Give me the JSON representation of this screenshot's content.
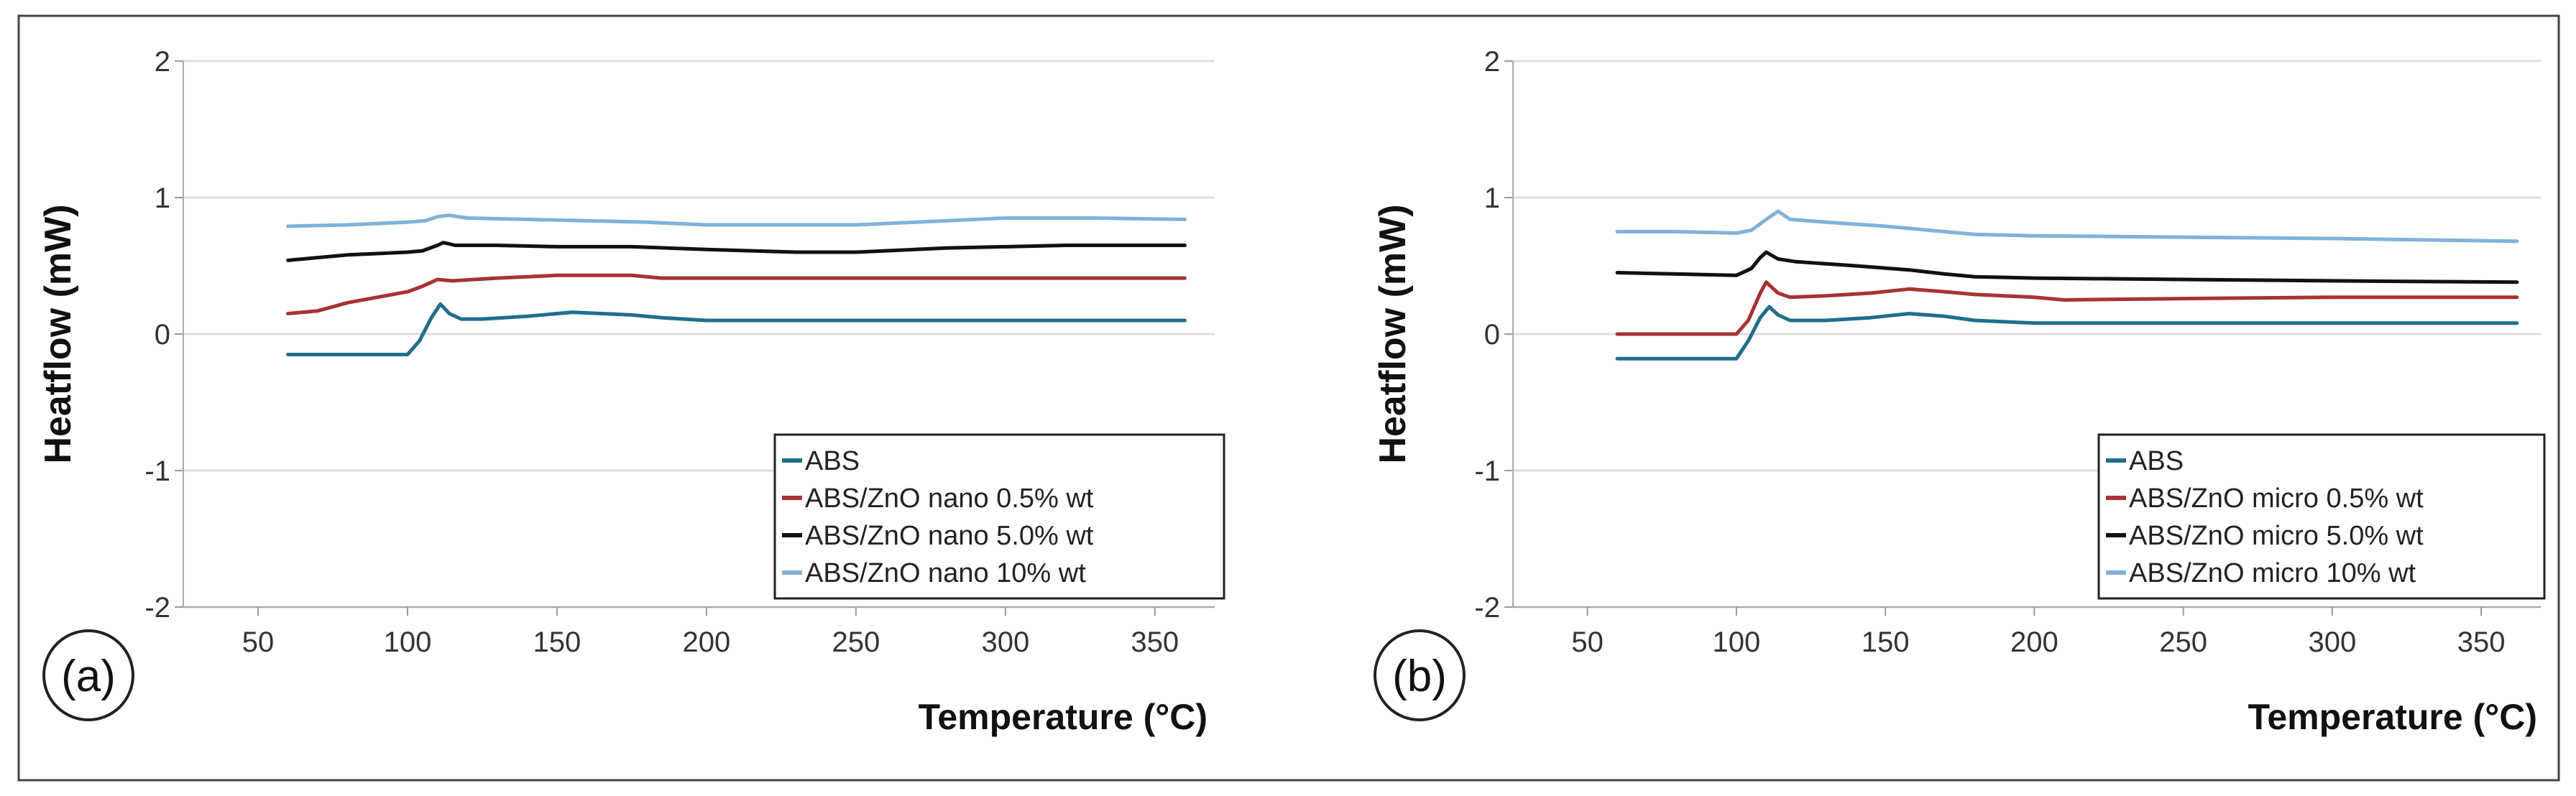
{
  "chart_data": [
    {
      "type": "line",
      "panel_label": "(a)",
      "xlabel": "Temperature (°C)",
      "ylabel": "Heatflow (mW)",
      "xlim": [
        25,
        370
      ],
      "ylim": [
        -2,
        2
      ],
      "xticks": [
        50,
        100,
        150,
        200,
        250,
        300,
        350
      ],
      "yticks": [
        2,
        1,
        0,
        -1,
        -2
      ],
      "grid": true,
      "legend_position": "bottom-right",
      "series": [
        {
          "name": "ABS",
          "color": "#1f6e8c",
          "x": [
            60,
            80,
            100,
            104,
            108,
            111,
            114,
            118,
            125,
            140,
            155,
            165,
            175,
            185,
            200,
            250,
            300,
            360
          ],
          "y": [
            -0.15,
            -0.15,
            -0.15,
            -0.05,
            0.12,
            0.22,
            0.15,
            0.11,
            0.11,
            0.13,
            0.16,
            0.15,
            0.14,
            0.12,
            0.1,
            0.1,
            0.1,
            0.1
          ]
        },
        {
          "name": "ABS/ZnO nano 0.5% wt",
          "color": "#a83232",
          "x": [
            60,
            70,
            80,
            90,
            100,
            105,
            110,
            115,
            130,
            150,
            175,
            185,
            200,
            250,
            300,
            360
          ],
          "y": [
            0.15,
            0.17,
            0.23,
            0.27,
            0.31,
            0.35,
            0.4,
            0.39,
            0.41,
            0.43,
            0.43,
            0.41,
            0.41,
            0.41,
            0.41,
            0.41
          ]
        },
        {
          "name": "ABS/ZnO nano 5.0% wt",
          "color": "#111111",
          "x": [
            60,
            80,
            100,
            105,
            110,
            112,
            116,
            130,
            150,
            175,
            200,
            230,
            250,
            280,
            320,
            360
          ],
          "y": [
            0.54,
            0.58,
            0.6,
            0.61,
            0.65,
            0.67,
            0.65,
            0.65,
            0.64,
            0.64,
            0.62,
            0.6,
            0.6,
            0.63,
            0.65,
            0.65
          ]
        },
        {
          "name": "ABS/ZnO nano 10% wt",
          "color": "#7fb2d9",
          "x": [
            60,
            80,
            100,
            106,
            110,
            114,
            120,
            140,
            160,
            180,
            200,
            230,
            250,
            270,
            300,
            330,
            360
          ],
          "y": [
            0.79,
            0.8,
            0.82,
            0.83,
            0.86,
            0.87,
            0.85,
            0.84,
            0.83,
            0.82,
            0.8,
            0.8,
            0.8,
            0.82,
            0.85,
            0.85,
            0.84
          ]
        }
      ]
    },
    {
      "type": "line",
      "panel_label": "(b)",
      "xlabel": "Temperature (°C)",
      "ylabel": "Heatflow (mW)",
      "xlim": [
        25,
        370
      ],
      "ylim": [
        -2,
        2
      ],
      "xticks": [
        50,
        100,
        150,
        200,
        250,
        300,
        350
      ],
      "yticks": [
        2,
        1,
        0,
        -1,
        -2
      ],
      "grid": true,
      "legend_position": "bottom-right",
      "series": [
        {
          "name": "ABS",
          "color": "#1f6e8c",
          "x": [
            60,
            80,
            100,
            104,
            108,
            111,
            114,
            118,
            130,
            145,
            158,
            170,
            180,
            200,
            250,
            300,
            362
          ],
          "y": [
            -0.18,
            -0.18,
            -0.18,
            -0.05,
            0.12,
            0.2,
            0.14,
            0.1,
            0.1,
            0.12,
            0.15,
            0.13,
            0.1,
            0.08,
            0.08,
            0.08,
            0.08
          ]
        },
        {
          "name": "ABS/ZnO micro 0.5% wt",
          "color": "#a83232",
          "x": [
            60,
            80,
            100,
            104,
            108,
            110,
            114,
            118,
            130,
            145,
            158,
            170,
            180,
            200,
            210,
            250,
            300,
            362
          ],
          "y": [
            0,
            0,
            0,
            0.1,
            0.3,
            0.38,
            0.3,
            0.27,
            0.28,
            0.3,
            0.33,
            0.31,
            0.29,
            0.27,
            0.25,
            0.26,
            0.27,
            0.27
          ]
        },
        {
          "name": "ABS/ZnO micro 5.0% wt",
          "color": "#111111",
          "x": [
            60,
            80,
            100,
            105,
            108,
            110,
            114,
            120,
            140,
            158,
            170,
            180,
            200,
            250,
            300,
            362
          ],
          "y": [
            0.45,
            0.44,
            0.43,
            0.48,
            0.56,
            0.6,
            0.55,
            0.53,
            0.5,
            0.47,
            0.44,
            0.42,
            0.41,
            0.4,
            0.39,
            0.38
          ]
        },
        {
          "name": "ABS/ZnO micro 10% wt",
          "color": "#7fb2d9",
          "x": [
            60,
            80,
            100,
            105,
            110,
            114,
            118,
            130,
            150,
            165,
            180,
            200,
            250,
            300,
            362
          ],
          "y": [
            0.75,
            0.75,
            0.74,
            0.76,
            0.84,
            0.9,
            0.84,
            0.82,
            0.79,
            0.76,
            0.73,
            0.72,
            0.71,
            0.7,
            0.68
          ]
        }
      ]
    }
  ]
}
